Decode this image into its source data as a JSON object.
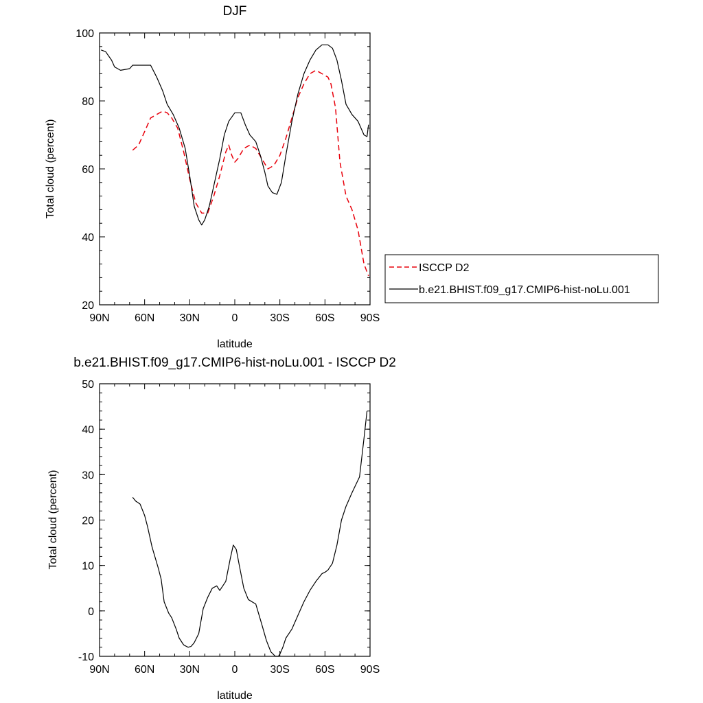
{
  "chart_data": [
    {
      "type": "line",
      "title": "DJF",
      "xlabel": "latitude",
      "ylabel": "Total cloud (percent)",
      "xlim": [
        90,
        -90
      ],
      "ylim": [
        20,
        100
      ],
      "x_ticks": [
        {
          "value": 90,
          "label": "90N"
        },
        {
          "value": 60,
          "label": "60N"
        },
        {
          "value": 30,
          "label": "30N"
        },
        {
          "value": 0,
          "label": "0"
        },
        {
          "value": -30,
          "label": "30S"
        },
        {
          "value": -60,
          "label": "60S"
        },
        {
          "value": -90,
          "label": "90S"
        }
      ],
      "y_ticks": [
        {
          "value": 100,
          "label": "100"
        },
        {
          "value": 80,
          "label": "80"
        },
        {
          "value": 60,
          "label": "60"
        },
        {
          "value": 40,
          "label": "40"
        },
        {
          "value": 20,
          "label": "20"
        }
      ],
      "legend_placement": "right, outside plot",
      "series": [
        {
          "name": "ISCCP D2",
          "color": "#e8000b",
          "style": "dashed",
          "x": [
            68,
            64,
            60,
            56,
            52,
            48,
            45,
            42,
            38,
            34,
            30,
            26,
            22,
            18,
            14,
            10,
            6,
            4,
            2,
            0,
            -2,
            -6,
            -10,
            -14,
            -18,
            -22,
            -26,
            -30,
            -34,
            -38,
            -42,
            -46,
            -50,
            -54,
            -58,
            -62,
            -64,
            -67,
            -70,
            -74,
            -78,
            -82,
            -86,
            -89
          ],
          "y": [
            65.5,
            67,
            71,
            75,
            76,
            77,
            76.5,
            75,
            72,
            65,
            57,
            50,
            47,
            47,
            52,
            58,
            65,
            67,
            64,
            62,
            63,
            66,
            67,
            66,
            63,
            60,
            61,
            64,
            69,
            75,
            81,
            85,
            88,
            89,
            88,
            87,
            85,
            78,
            62,
            52,
            48,
            42,
            32,
            28.5
          ]
        },
        {
          "name": "b.e21.BHIST.f09_g17.CMIP6-hist-noLu.001",
          "color": "#000000",
          "style": "solid",
          "x": [
            89,
            86,
            82,
            80,
            76,
            70,
            68,
            65,
            60,
            56,
            52,
            48,
            45,
            41,
            37,
            33,
            30,
            27,
            24,
            22,
            20,
            17,
            14,
            10,
            7,
            4,
            0,
            -4,
            -7,
            -10,
            -14,
            -17,
            -20,
            -22,
            -25,
            -28,
            -31,
            -34,
            -38,
            -42,
            -46,
            -50,
            -54,
            -58,
            -62,
            -65,
            -68,
            -71,
            -74,
            -78,
            -82,
            -86,
            -88,
            -89
          ],
          "y": [
            95,
            94.5,
            92,
            90,
            89,
            89.5,
            90.5,
            90.5,
            90.5,
            90.5,
            87,
            83,
            79,
            76,
            72,
            66,
            58,
            49,
            45,
            43.5,
            45,
            49,
            55,
            63,
            70,
            74,
            76.5,
            76.5,
            73,
            70,
            68,
            64,
            59,
            55,
            53,
            52.5,
            56,
            64,
            74,
            82,
            88,
            92,
            95,
            96.5,
            96.5,
            95.5,
            92,
            86,
            79,
            76,
            74,
            70,
            69.5,
            73
          ]
        }
      ]
    },
    {
      "type": "line",
      "title": "b.e21.BHIST.f09_g17.CMIP6-hist-noLu.001 - ISCCP D2",
      "xlabel": "latitude",
      "ylabel": "Total cloud (percent)",
      "xlim": [
        90,
        -90
      ],
      "ylim": [
        -10,
        50
      ],
      "x_ticks": [
        {
          "value": 90,
          "label": "90N"
        },
        {
          "value": 60,
          "label": "60N"
        },
        {
          "value": 30,
          "label": "30N"
        },
        {
          "value": 0,
          "label": "0"
        },
        {
          "value": -30,
          "label": "30S"
        },
        {
          "value": -60,
          "label": "60S"
        },
        {
          "value": -90,
          "label": "90S"
        }
      ],
      "y_ticks": [
        {
          "value": 50,
          "label": "50"
        },
        {
          "value": 40,
          "label": "40"
        },
        {
          "value": 30,
          "label": "30"
        },
        {
          "value": 20,
          "label": "20"
        },
        {
          "value": 10,
          "label": "10"
        },
        {
          "value": 0,
          "label": "0"
        },
        {
          "value": -10,
          "label": "-10"
        }
      ],
      "series": [
        {
          "color": "#000000",
          "style": "solid",
          "x": [
            68,
            66,
            63,
            60,
            58,
            55,
            51,
            49,
            47,
            44,
            42,
            39,
            37,
            34,
            31,
            29,
            27,
            24,
            21,
            18,
            15,
            12,
            10,
            8,
            6,
            3,
            1,
            -1,
            -3,
            -6,
            -9,
            -14,
            -18,
            -21,
            -24,
            -27,
            -29,
            -30,
            -32,
            -34,
            -38,
            -42,
            -46,
            -50,
            -54,
            -58,
            -60,
            -62,
            -65,
            -68,
            -71,
            -74,
            -78,
            -83,
            -86,
            -88
          ],
          "y": [
            25,
            24.2,
            23.5,
            21,
            18.5,
            14,
            9.5,
            7,
            2,
            -0.5,
            -1.5,
            -4,
            -6,
            -7.5,
            -8,
            -7.8,
            -7,
            -5,
            0.5,
            3,
            5,
            5.5,
            4.5,
            5.5,
            6.5,
            11.5,
            14.5,
            13.5,
            10,
            5,
            2.5,
            1.5,
            -3,
            -6.5,
            -9,
            -10,
            -10,
            -9.5,
            -8,
            -6,
            -4,
            -1,
            2,
            4.5,
            6.5,
            8.2,
            8.5,
            9,
            10.5,
            14.5,
            20,
            23,
            26,
            29.5,
            38,
            44
          ]
        }
      ]
    }
  ]
}
